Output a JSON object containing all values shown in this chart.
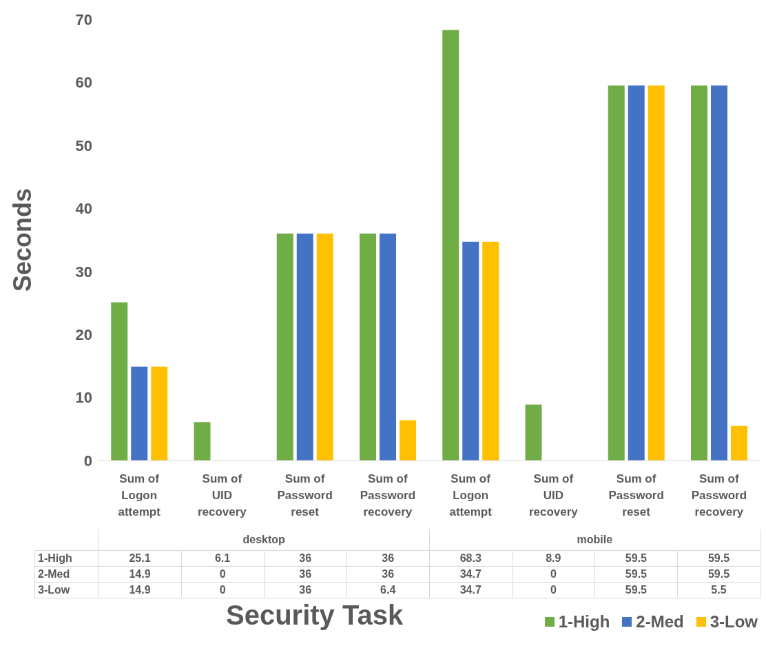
{
  "chart_data": {
    "type": "bar",
    "xlabel": "Security Task",
    "ylabel": "Seconds",
    "categories": [
      "Sum of Logon attempt",
      "Sum of UID recovery",
      "Sum of Password reset",
      "Sum of Password recovery",
      "Sum of Logon attempt",
      "Sum of UID recovery",
      "Sum of Password reset",
      "Sum of Password recovery"
    ],
    "annotations": [
      "desktop",
      "mobile"
    ],
    "series": [
      {
        "name": "1-High",
        "color": "#70ad47",
        "values": [
          25.1,
          6.1,
          36,
          36,
          68.3,
          8.9,
          59.5,
          59.5
        ]
      },
      {
        "name": "2-Med",
        "color": "#4472c4",
        "values": [
          14.9,
          0,
          36,
          36,
          34.7,
          0,
          59.5,
          59.5
        ]
      },
      {
        "name": "3-Low",
        "color": "#ffc000",
        "values": [
          14.9,
          0,
          36,
          6.4,
          34.7,
          0,
          59.5,
          5.5
        ]
      }
    ],
    "ylim": [
      0,
      70
    ],
    "yticks": [
      0,
      10,
      20,
      30,
      40,
      50,
      60,
      70
    ],
    "data_labels": true,
    "legend": "bottom right"
  }
}
